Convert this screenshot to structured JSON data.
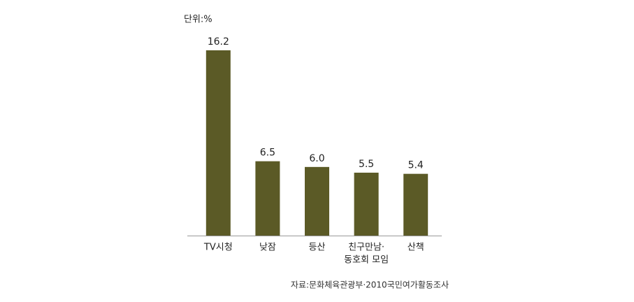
{
  "chart_data": {
    "type": "bar",
    "unit_label": "단위:%",
    "categories": [
      "TV시청",
      "낮잠",
      "등산",
      [
        "친구만남·",
        "동호회 모임"
      ],
      "산책"
    ],
    "values": [
      16.2,
      6.5,
      6.0,
      5.5,
      5.4
    ],
    "value_labels": [
      "16.2",
      "6.5",
      "6.0",
      "5.5",
      "5.4"
    ],
    "color": "#5b5a26",
    "ylim": [
      0,
      18
    ],
    "source": "자료:문화체육관광부·2010국민여가활동조사"
  }
}
